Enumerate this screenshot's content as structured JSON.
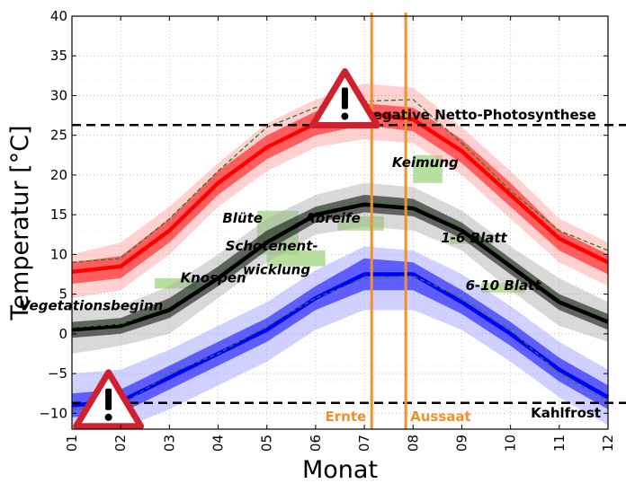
{
  "chart_data": {
    "type": "line",
    "xlabel": "Monat",
    "ylabel": "Temperatur [°C]",
    "x": [
      1,
      2,
      3,
      4,
      5,
      6,
      7,
      8,
      9,
      10,
      11,
      12
    ],
    "x_tick_labels": [
      "01",
      "02",
      "03",
      "04",
      "05",
      "06",
      "07",
      "08",
      "09",
      "10",
      "11",
      "12"
    ],
    "xlim": [
      1,
      12
    ],
    "ylim": [
      -12,
      40
    ],
    "y_ticks": [
      -10,
      -5,
      0,
      5,
      10,
      15,
      20,
      25,
      30,
      35,
      40
    ],
    "grid": true,
    "series": [
      {
        "color": "#ff0000",
        "band_color": "#ff9999",
        "values": [
          7.8,
          8.5,
          13.0,
          19.0,
          23.5,
          26.5,
          27.8,
          27.0,
          23.0,
          17.5,
          12.0,
          9.0
        ],
        "band_inner_low": [
          6.3,
          7.0,
          11.5,
          17.5,
          22.0,
          25.0,
          26.3,
          25.5,
          21.5,
          16.0,
          10.5,
          7.5
        ],
        "band_inner_high": [
          9.0,
          9.8,
          14.5,
          20.5,
          25.0,
          28.0,
          29.0,
          28.5,
          24.5,
          19.0,
          13.0,
          10.0
        ],
        "band_outer_low": [
          4.5,
          5.5,
          10.0,
          16.0,
          20.5,
          23.5,
          24.5,
          24.0,
          20.0,
          14.5,
          9.0,
          6.0
        ],
        "band_outer_high": [
          10.0,
          11.5,
          16.0,
          21.5,
          26.5,
          29.5,
          31.5,
          31.0,
          26.0,
          20.5,
          14.5,
          11.5
        ],
        "dashed_values": [
          9.0,
          9.5,
          14.5,
          20.5,
          26.0,
          28.5,
          29.3,
          29.5,
          24.0,
          18.0,
          13.0,
          10.5
        ]
      },
      {
        "color": "#000000",
        "band_color": "#aaaaaa",
        "values": [
          0.5,
          1.0,
          3.0,
          7.0,
          11.5,
          15.0,
          16.3,
          15.8,
          13.0,
          8.5,
          4.0,
          1.5
        ],
        "band_inner_low": [
          -0.5,
          0.0,
          2.0,
          6.0,
          10.5,
          14.0,
          15.3,
          14.8,
          12.0,
          7.5,
          3.0,
          0.5
        ],
        "band_inner_high": [
          1.5,
          2.0,
          4.5,
          8.5,
          13.0,
          16.0,
          17.5,
          17.0,
          14.0,
          9.5,
          5.0,
          2.5
        ],
        "band_outer_low": [
          -2.5,
          -1.5,
          0.0,
          4.5,
          9.0,
          12.5,
          13.5,
          13.0,
          10.5,
          5.5,
          1.0,
          -1.0
        ],
        "band_outer_high": [
          3.0,
          3.5,
          6.0,
          10.0,
          14.5,
          17.5,
          19.0,
          18.5,
          15.5,
          11.0,
          7.0,
          4.0
        ],
        "dashed_values": [
          0.8,
          1.2,
          3.5,
          7.5,
          12.0,
          15.5,
          16.8,
          16.2,
          13.5,
          9.0,
          4.5,
          2.0
        ]
      },
      {
        "color": "#0000ff",
        "band_color": "#9999ff",
        "values": [
          -9.0,
          -8.5,
          -5.5,
          -2.5,
          0.5,
          4.5,
          7.5,
          7.5,
          4.0,
          0.0,
          -4.5,
          -8.0
        ],
        "band_inner_low": [
          -10.5,
          -10.0,
          -7.0,
          -4.0,
          -1.0,
          3.0,
          5.5,
          5.5,
          2.5,
          -1.5,
          -6.0,
          -9.5
        ],
        "band_inner_high": [
          -7.5,
          -7.0,
          -4.0,
          -1.0,
          2.0,
          6.0,
          9.5,
          9.0,
          5.5,
          1.5,
          -3.0,
          -6.5
        ],
        "band_outer_low": [
          -12.0,
          -12.0,
          -9.5,
          -6.5,
          -3.5,
          0.5,
          3.0,
          3.0,
          0.5,
          -3.5,
          -8.0,
          -11.5
        ],
        "band_outer_high": [
          -5.0,
          -4.5,
          -2.0,
          1.0,
          4.0,
          8.0,
          11.0,
          10.5,
          7.5,
          3.5,
          -1.0,
          -4.5
        ],
        "dashed_values": [
          -9.5,
          -9.0,
          -5.0,
          -2.5,
          1.0,
          4.5,
          7.0,
          7.3,
          4.5,
          0.5,
          -5.0,
          -8.5
        ]
      }
    ],
    "hlines": [
      {
        "y": 26.3,
        "label": "negative Netto-Photosynthese"
      },
      {
        "y": -8.7,
        "label": "Kahlfrost"
      }
    ],
    "vlines": [
      {
        "x": 7.15,
        "label": "Ernte",
        "color": "#f0922a"
      },
      {
        "x": 7.85,
        "label": "Aussaat",
        "color": "#f0922a"
      }
    ],
    "stages": [
      {
        "label": "Vegetationsbeginn",
        "x": 1.4,
        "y": 3.0,
        "italic": true
      },
      {
        "label": "Knospen",
        "x": 3.9,
        "y": 6.5,
        "italic": true
      },
      {
        "label": "Blüte",
        "x": 4.5,
        "y": 14.0,
        "italic": true
      },
      {
        "label": "Schotenent-",
        "x": 5.1,
        "y": 10.5,
        "italic": true
      },
      {
        "label": "wicklung",
        "x": 5.2,
        "y": 7.5,
        "italic": true
      },
      {
        "label": "Abreife",
        "x": 6.35,
        "y": 14.0,
        "italic": true
      },
      {
        "label": "Keimung",
        "x": 8.25,
        "y": 21.0,
        "italic": true
      },
      {
        "label": "1-6 Blatt",
        "x": 9.25,
        "y": 11.5,
        "italic": true
      },
      {
        "label": "6-10 Blatt",
        "x": 9.85,
        "y": 5.5,
        "italic": true
      }
    ],
    "highlight_boxes": [
      {
        "x0": 4.8,
        "x1": 5.65,
        "y0": 10.0,
        "y1": 15.5
      },
      {
        "x0": 5.0,
        "x1": 6.2,
        "y0": 8.5,
        "y1": 10.5
      },
      {
        "x0": 8.0,
        "x1": 8.6,
        "y0": 19.0,
        "y1": 22.5
      },
      {
        "x0": 6.45,
        "x1": 7.4,
        "y0": 13.0,
        "y1": 14.8
      },
      {
        "x0": 2.7,
        "x1": 3.55,
        "y0": 5.7,
        "y1": 7.0
      },
      {
        "x0": 8.75,
        "x1": 9.65,
        "y0": 11.3,
        "y1": 12.5
      },
      {
        "x0": 9.4,
        "x1": 10.3,
        "y0": 5.2,
        "y1": 6.4
      }
    ],
    "warnings": [
      {
        "x": 6.6,
        "y": 29.2
      },
      {
        "x": 1.75,
        "y": -8.7
      }
    ]
  }
}
